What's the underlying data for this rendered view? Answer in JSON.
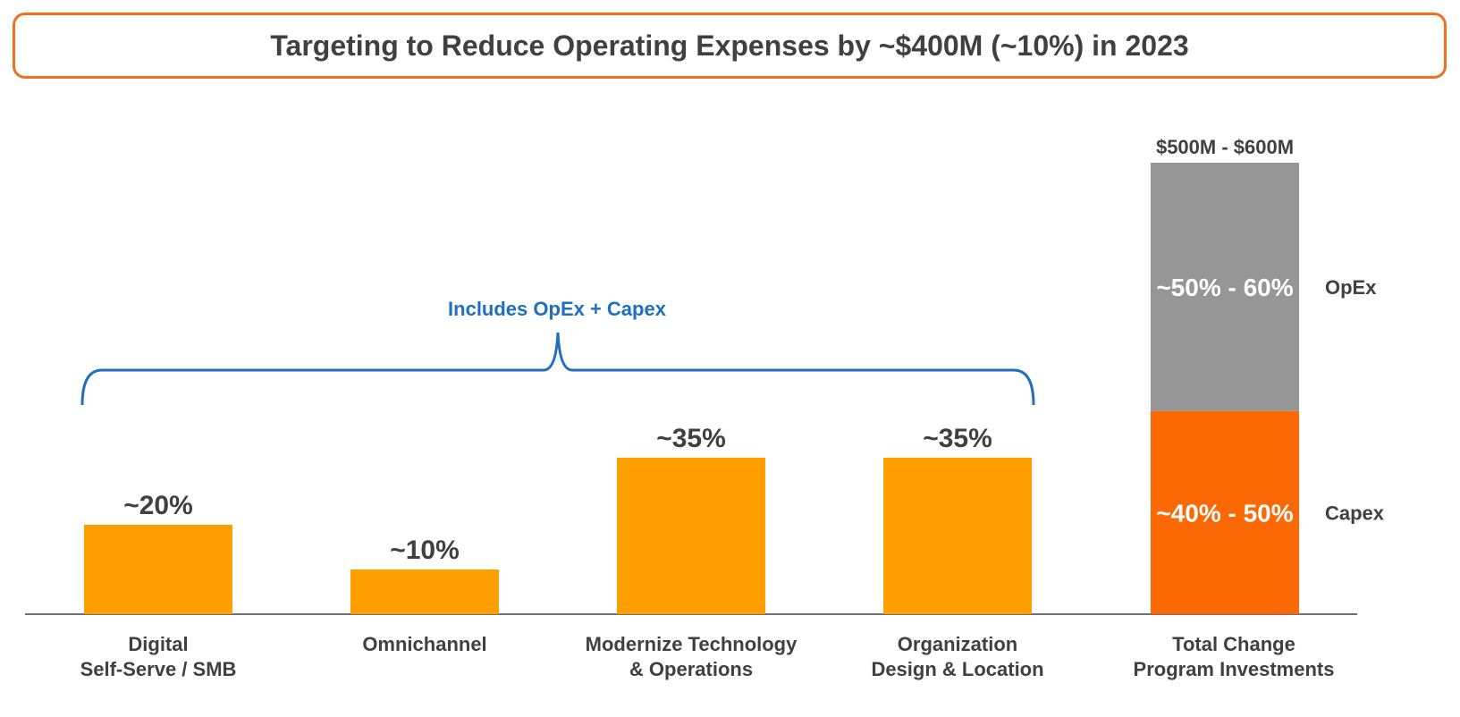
{
  "title": "Targeting to Reduce Operating Expenses by ~$400M (~10%) in 2023",
  "colors": {
    "title_border": "#f26f21",
    "bar": "#ffa000",
    "opex": "#969696",
    "capex": "#fc6904",
    "brace": "#1f6fbf",
    "axis": "#404040"
  },
  "chart_data": {
    "type": "bar",
    "categories": [
      [
        "Digital",
        "Self-Serve / SMB"
      ],
      [
        "Omnichannel"
      ],
      [
        "Modernize Technology",
        "& Operations"
      ],
      [
        "Organization",
        "Design & Location"
      ]
    ],
    "values": [
      20,
      10,
      35,
      35
    ],
    "value_labels": [
      "~20%",
      "~10%",
      "~35%",
      "~35%"
    ],
    "unit": "% of reduction",
    "brace_label": "Includes OpEx + Capex",
    "stacked_bar": {
      "category": [
        "Total Change",
        "Program Investments"
      ],
      "total_label": "$500M - $600M",
      "segments": [
        {
          "name": "Capex",
          "label": "~40% - 50%",
          "share": 45
        },
        {
          "name": "OpEx",
          "label": "~50% - 60%",
          "share": 55
        }
      ]
    }
  }
}
